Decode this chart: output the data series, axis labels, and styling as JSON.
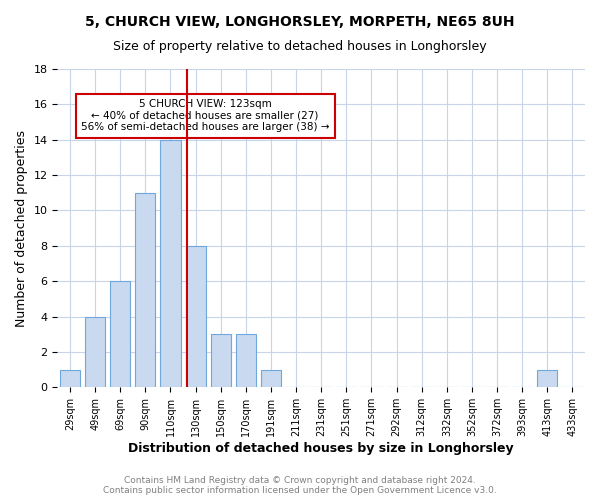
{
  "title1": "5, CHURCH VIEW, LONGHORSLEY, MORPETH, NE65 8UH",
  "title2": "Size of property relative to detached houses in Longhorsley",
  "xlabel": "Distribution of detached houses by size in Longhorsley",
  "ylabel": "Number of detached properties",
  "footnote": "Contains HM Land Registry data © Crown copyright and database right 2024.\nContains public sector information licensed under the Open Government Licence v3.0.",
  "bin_labels": [
    "29sqm",
    "49sqm",
    "69sqm",
    "90sqm",
    "110sqm",
    "130sqm",
    "150sqm",
    "170sqm",
    "191sqm",
    "211sqm",
    "231sqm",
    "251sqm",
    "271sqm",
    "292sqm",
    "312sqm",
    "332sqm",
    "352sqm",
    "372sqm",
    "393sqm",
    "413sqm",
    "433sqm"
  ],
  "counts": [
    1,
    4,
    6,
    11,
    14,
    8,
    3,
    3,
    1,
    0,
    0,
    0,
    0,
    0,
    0,
    0,
    0,
    0,
    0,
    1,
    0
  ],
  "bar_color": "#c9d9f0",
  "bar_edge_color": "#6fa8dc",
  "vline_bin": 5,
  "vline_color": "#cc0000",
  "ylim": [
    0,
    18
  ],
  "yticks": [
    0,
    2,
    4,
    6,
    8,
    10,
    12,
    14,
    16,
    18
  ],
  "annotation_text": "5 CHURCH VIEW: 123sqm\n← 40% of detached houses are smaller (27)\n56% of semi-detached houses are larger (38) →",
  "annotation_box_color": "#cc0000",
  "bg_color": "#ffffff",
  "grid_color": "#c8d4e8",
  "title1_fontsize": 10,
  "title2_fontsize": 9,
  "xlabel_fontsize": 9,
  "ylabel_fontsize": 9,
  "footnote_color": "#808080",
  "footnote_fontsize": 6.5
}
